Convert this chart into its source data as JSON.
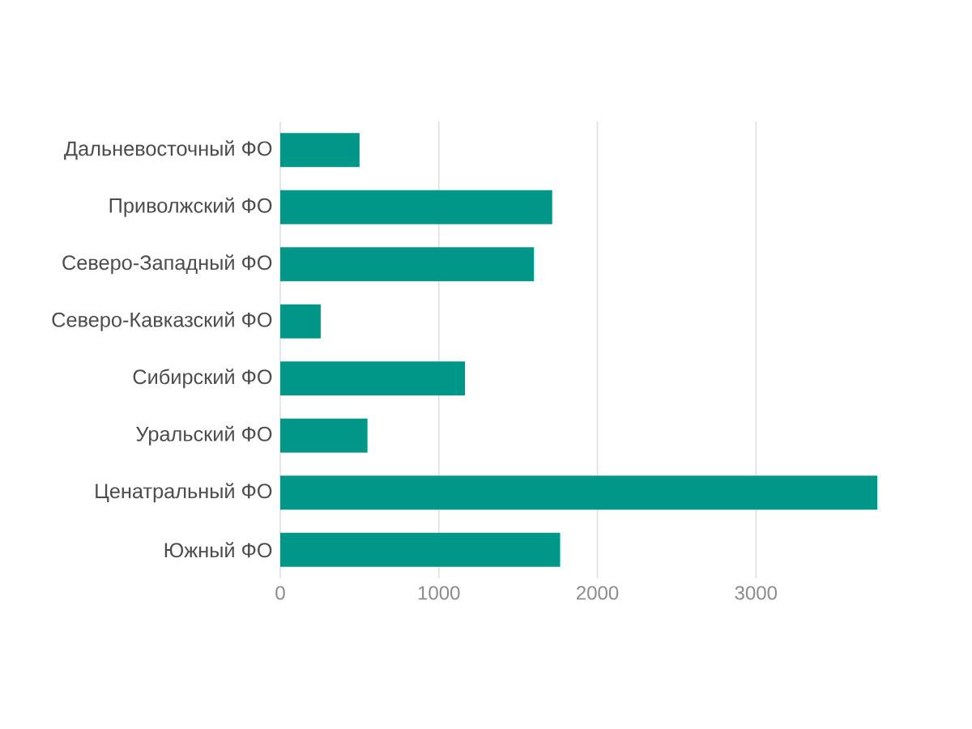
{
  "chart_data": {
    "type": "bar",
    "orientation": "horizontal",
    "categories": [
      "Дальневосточный ФО",
      "Приволжский  ФО",
      "Северо-Западный ФО",
      "Северо-Кавказский ФО",
      "Сибирский ФО",
      "Уральский ФО",
      "Ценатральный ФО",
      "Южный ФО"
    ],
    "values": [
      500,
      1715,
      1600,
      255,
      1165,
      550,
      3765,
      1765
    ],
    "color": "#009688",
    "xlim": [
      0,
      3770
    ],
    "xticks": [
      0,
      1000,
      2000,
      3000
    ],
    "grid": "x"
  }
}
